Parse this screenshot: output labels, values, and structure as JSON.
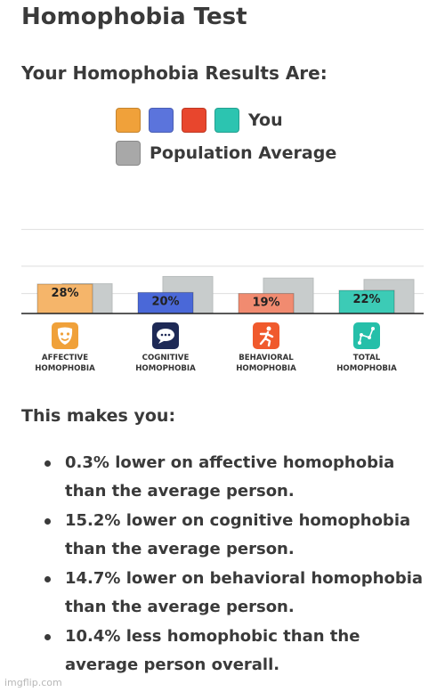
{
  "title": "Homophobia Test",
  "results_heading": "Your Homophobia Results Are:",
  "legend": {
    "you_label": "You",
    "population_label": "Population Average",
    "you_colors": [
      "#f0a13a",
      "#5b74dc",
      "#e8462d",
      "#2cc4b0"
    ],
    "population_color": "#a8a8a8"
  },
  "chart_data": {
    "type": "bar",
    "categories": [
      "AFFECTIVE HOMOPHOBIA",
      "COGNITIVE HOMOPHOBIA",
      "BEHAVIORAL HOMOPHOBIA",
      "TOTAL HOMOPHOBIA"
    ],
    "category_lines": [
      [
        "AFFECTIVE",
        "HOMOPHOBIA"
      ],
      [
        "COGNITIVE",
        "HOMOPHOBIA"
      ],
      [
        "BEHAVIORAL",
        "HOMOPHOBIA"
      ],
      [
        "TOTAL",
        "HOMOPHOBIA"
      ]
    ],
    "icons": [
      "theater-mask-icon",
      "speech-bubble-icon",
      "running-person-icon",
      "line-graph-icon"
    ],
    "series": [
      {
        "name": "You",
        "values": [
          28,
          20,
          19,
          22
        ],
        "labels": [
          "28%",
          "20%",
          "19%",
          "22%"
        ],
        "colors": [
          "#f5b56a",
          "#4a68d8",
          "#f18b70",
          "#3ccbb6"
        ],
        "icon_colors": [
          "#f0a13a",
          "#1e2a56",
          "#f05a2d",
          "#25bfa9"
        ]
      },
      {
        "name": "Population Average",
        "values": [
          28.3,
          35.2,
          33.7,
          32.4
        ],
        "color": "#c8cccc"
      }
    ],
    "ylim": [
      0,
      100
    ],
    "grid": true
  },
  "makes_heading": "This makes you:",
  "bullets": [
    "0.3% lower on affective homophobia than the average person.",
    "15.2% lower on cognitive homophobia than the average person.",
    "14.7% lower on behavioral homophobia than the average person.",
    "10.4% less homophobic than the average person overall."
  ],
  "watermark": "imgflip.com"
}
